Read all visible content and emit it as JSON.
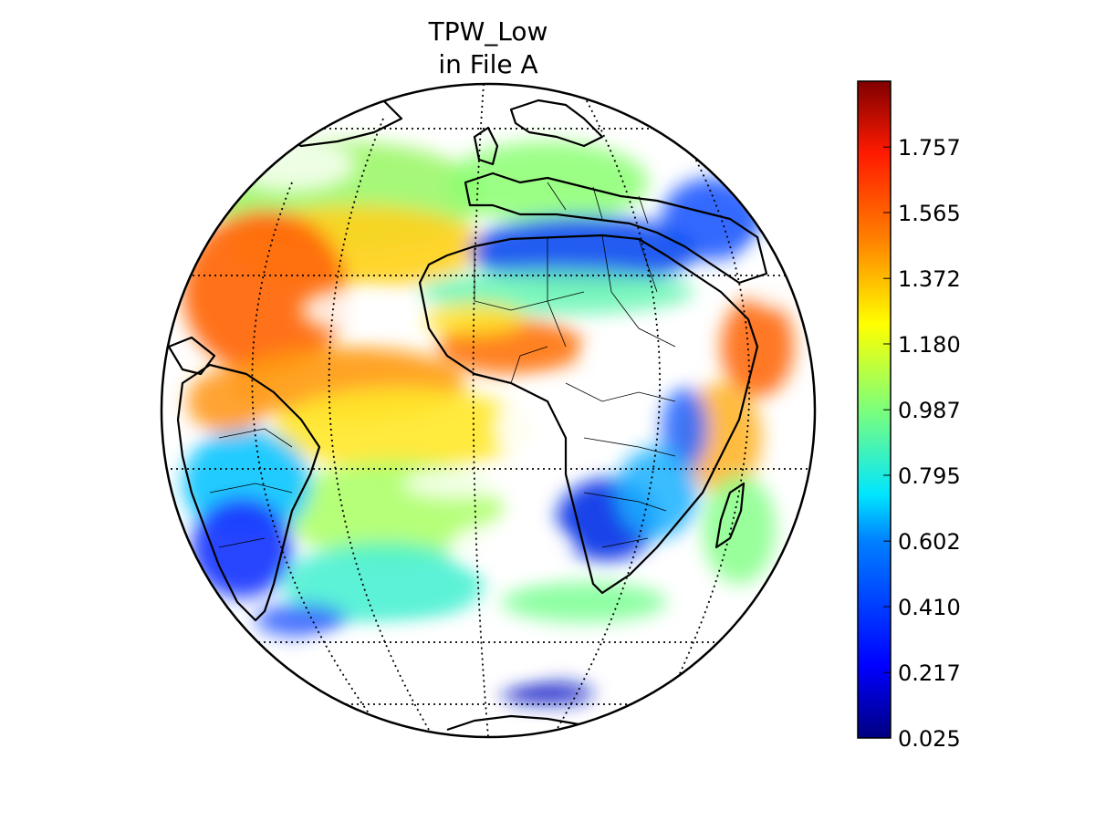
{
  "title": {
    "line1": "TPW_Low",
    "line2": "in File A"
  },
  "projection": "orthographic",
  "graticule": {
    "style": "dotted",
    "visible": true
  },
  "colorbar": {
    "colormap": "jet",
    "orientation": "vertical",
    "ticks": [
      "1.757",
      "1.565",
      "1.372",
      "1.180",
      "0.987",
      "0.795",
      "0.602",
      "0.410",
      "0.217",
      "0.025"
    ],
    "tick_values": [
      1.757,
      1.565,
      1.372,
      1.18,
      0.987,
      0.795,
      0.602,
      0.41,
      0.217,
      0.025
    ],
    "range": [
      0.025,
      1.95
    ],
    "colors": [
      "#000080",
      "#0000ff",
      "#0080ff",
      "#00ffff",
      "#80ff80",
      "#ffff00",
      "#ff8000",
      "#ff0000",
      "#800000"
    ]
  },
  "legend_colors": {
    "ocean_background": "#ffffff",
    "coastline": "#000000"
  }
}
